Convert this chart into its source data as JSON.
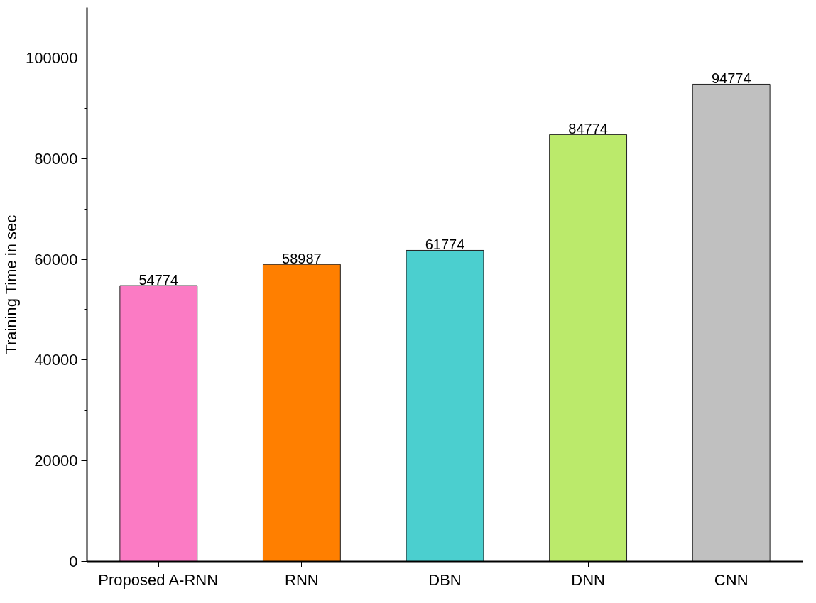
{
  "chart_data": {
    "type": "bar",
    "ylabel": "Training Time in sec",
    "categories": [
      "Proposed A-RNN",
      "RNN",
      "DBN",
      "DNN",
      "CNN"
    ],
    "values": [
      54774,
      58987,
      61774,
      84774,
      94774
    ],
    "colors": [
      "#fb7bc4",
      "#ff7f00",
      "#4bcfcf",
      "#bbea6b",
      "#c0c0c0"
    ],
    "ylim": [
      0,
      110000
    ],
    "yticks": [
      0,
      20000,
      40000,
      60000,
      80000,
      100000
    ],
    "data_labels": true,
    "grid": false
  }
}
